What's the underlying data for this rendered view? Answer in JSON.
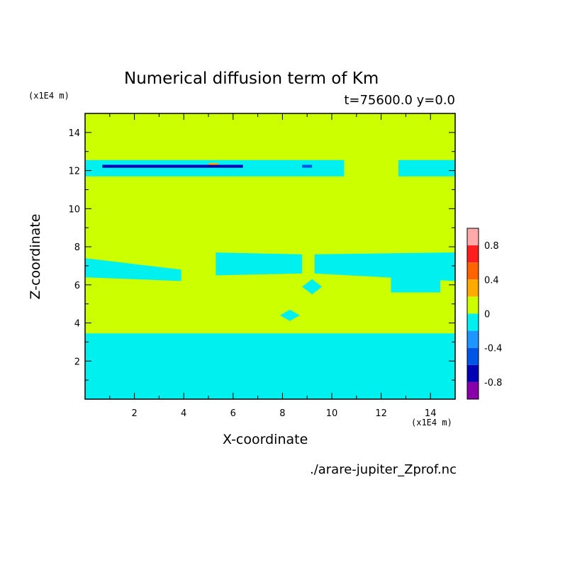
{
  "chart_data": {
    "type": "heatmap",
    "title": "Numerical diffusion term of Km",
    "subtitle": "t=75600.0 y=0.0",
    "xlabel": "X-coordinate",
    "ylabel": "Z-coordinate",
    "x_unit": "(x1E4 m)",
    "y_unit": "(x1E4 m)",
    "source": "./arare-jupiter_Zprof.nc",
    "xlim": [
      0,
      15
    ],
    "ylim": [
      0,
      15
    ],
    "x_ticks": [
      2,
      4,
      6,
      8,
      10,
      12,
      14
    ],
    "y_ticks": [
      2,
      4,
      6,
      8,
      10,
      12,
      14
    ],
    "background_level_color": "#ccff00",
    "colorbar": {
      "bands": [
        {
          "from": -1.0,
          "to": -0.8,
          "color": "#8800aa"
        },
        {
          "from": -0.8,
          "to": -0.6,
          "color": "#0000b4"
        },
        {
          "from": -0.6,
          "to": -0.4,
          "color": "#0055e6"
        },
        {
          "from": -0.4,
          "to": -0.2,
          "color": "#1e96ff"
        },
        {
          "from": -0.2,
          "to": 0.0,
          "color": "#00f0f0"
        },
        {
          "from": 0.0,
          "to": 0.2,
          "color": "#ccff00"
        },
        {
          "from": 0.2,
          "to": 0.4,
          "color": "#ffaa00"
        },
        {
          "from": 0.4,
          "to": 0.6,
          "color": "#ff6400"
        },
        {
          "from": 0.6,
          "to": 0.8,
          "color": "#ff1e1e"
        },
        {
          "from": 0.8,
          "to": 1.0,
          "color": "#ffaaaa"
        }
      ],
      "tick_labels": [
        "0.8",
        "0.4",
        "0",
        "-0.4",
        "-0.8"
      ],
      "tick_values": [
        0.8,
        0.4,
        0,
        -0.4,
        -0.8
      ]
    },
    "regions": [
      {
        "level": -0.1,
        "points": [
          [
            0,
            12.55
          ],
          [
            10.5,
            12.55
          ],
          [
            10.5,
            11.7
          ],
          [
            0,
            11.7
          ]
        ]
      },
      {
        "level": -0.1,
        "points": [
          [
            12.7,
            12.55
          ],
          [
            15,
            12.55
          ],
          [
            15,
            11.7
          ],
          [
            12.7,
            11.7
          ]
        ]
      },
      {
        "level": -0.1,
        "points": [
          [
            0,
            7.4
          ],
          [
            3.9,
            6.8
          ],
          [
            3.9,
            6.2
          ],
          [
            0,
            6.4
          ]
        ]
      },
      {
        "level": -0.1,
        "points": [
          [
            5.3,
            7.7
          ],
          [
            8.8,
            7.6
          ],
          [
            8.8,
            6.6
          ],
          [
            5.3,
            6.5
          ]
        ]
      },
      {
        "level": -0.1,
        "points": [
          [
            9.3,
            7.6
          ],
          [
            15,
            7.7
          ],
          [
            15,
            6.2
          ],
          [
            9.3,
            6.6
          ]
        ]
      },
      {
        "level": -0.1,
        "points": [
          [
            12.4,
            6.4
          ],
          [
            14.4,
            6.4
          ],
          [
            14.4,
            5.6
          ],
          [
            12.4,
            5.6
          ]
        ]
      },
      {
        "level": -0.1,
        "points": [
          [
            9.2,
            6.3
          ],
          [
            9.6,
            5.9
          ],
          [
            9.2,
            5.5
          ],
          [
            8.8,
            5.9
          ]
        ]
      },
      {
        "level": -0.1,
        "points": [
          [
            8.3,
            4.7
          ],
          [
            8.7,
            4.4
          ],
          [
            8.3,
            4.1
          ],
          [
            7.9,
            4.4
          ]
        ]
      },
      {
        "level": -0.1,
        "points": [
          [
            0,
            3.45
          ],
          [
            15,
            3.45
          ],
          [
            15,
            0
          ],
          [
            0,
            0
          ]
        ]
      },
      {
        "level": -0.7,
        "points": [
          [
            0.7,
            12.3
          ],
          [
            6.4,
            12.3
          ],
          [
            6.4,
            12.15
          ],
          [
            0.7,
            12.15
          ]
        ]
      },
      {
        "level": -0.5,
        "points": [
          [
            8.8,
            12.3
          ],
          [
            9.2,
            12.3
          ],
          [
            9.2,
            12.15
          ],
          [
            8.8,
            12.15
          ]
        ]
      },
      {
        "level": 0.3,
        "points": [
          [
            5.0,
            12.4
          ],
          [
            5.4,
            12.4
          ],
          [
            5.4,
            12.3
          ],
          [
            5.0,
            12.3
          ]
        ]
      }
    ]
  }
}
